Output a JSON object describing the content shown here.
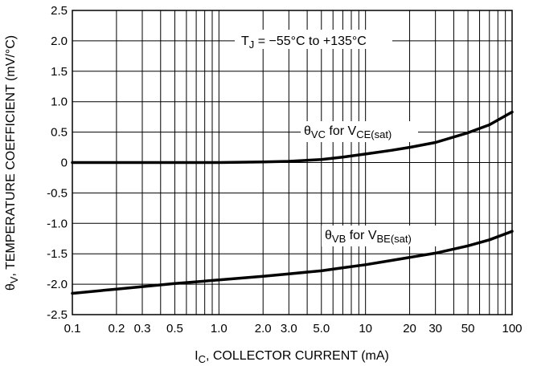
{
  "chart_data": {
    "type": "line",
    "x_scale": "log",
    "xlim": [
      0.1,
      100
    ],
    "ylim": [
      -2.5,
      2.5
    ],
    "grid": true,
    "xlabel": {
      "main": "I",
      "sub": "C",
      "rest": ", COLLECTOR CURRENT (mA)"
    },
    "ylabel": {
      "main": "θ",
      "sub": "V",
      "rest": ", TEMPERATURE COEFFICIENT (mV/°C)"
    },
    "x_ticks": [
      {
        "value": 0.1,
        "label": "0.1"
      },
      {
        "value": 0.2,
        "label": "0.2"
      },
      {
        "value": 0.3,
        "label": "0.3"
      },
      {
        "value": 0.5,
        "label": "0.5"
      },
      {
        "value": 1.0,
        "label": "1.0"
      },
      {
        "value": 2.0,
        "label": "2.0"
      },
      {
        "value": 3.0,
        "label": "3.0"
      },
      {
        "value": 5.0,
        "label": "5.0"
      },
      {
        "value": 10,
        "label": "10"
      },
      {
        "value": 20,
        "label": "20"
      },
      {
        "value": 30,
        "label": "30"
      },
      {
        "value": 50,
        "label": "50"
      },
      {
        "value": 100,
        "label": "100"
      }
    ],
    "y_ticks": [
      {
        "value": 2.5,
        "label": "2.5"
      },
      {
        "value": 2.0,
        "label": "2.0"
      },
      {
        "value": 1.5,
        "label": "1.5"
      },
      {
        "value": 1.0,
        "label": "1.0"
      },
      {
        "value": 0.5,
        "label": "0.5"
      },
      {
        "value": 0,
        "label": "0"
      },
      {
        "value": -0.5,
        "label": "-0.5"
      },
      {
        "value": -1.0,
        "label": "-1.0"
      },
      {
        "value": -1.5,
        "label": "-1.5"
      },
      {
        "value": -2.0,
        "label": "-2.0"
      },
      {
        "value": -2.5,
        "label": "-2.5"
      }
    ],
    "series": [
      {
        "x": [
          0.1,
          0.2,
          0.5,
          1,
          2,
          3,
          5,
          7,
          10,
          15,
          20,
          30,
          50,
          70,
          100
        ],
        "y": [
          0.0,
          0.0,
          0.0,
          0.0,
          0.01,
          0.02,
          0.05,
          0.09,
          0.14,
          0.2,
          0.25,
          0.33,
          0.49,
          0.62,
          0.83
        ]
      },
      {
        "x": [
          0.1,
          0.2,
          0.5,
          1,
          2,
          3,
          5,
          7,
          10,
          15,
          20,
          30,
          50,
          70,
          100
        ],
        "y": [
          -2.15,
          -2.08,
          -1.99,
          -1.93,
          -1.87,
          -1.83,
          -1.78,
          -1.73,
          -1.68,
          -1.61,
          -1.56,
          -1.49,
          -1.37,
          -1.27,
          -1.13
        ]
      }
    ],
    "annotations": {
      "tj": {
        "pre": "T",
        "sub": "J",
        "post": " = −55°C to +135°C"
      },
      "vc": {
        "theta": "θ",
        "theta_sub": "VC",
        "mid": " for V",
        "v_sub": "CE(sat)"
      },
      "vb": {
        "theta": "θ",
        "theta_sub": "VB",
        "mid": " for V",
        "v_sub": "BE(sat)"
      }
    }
  }
}
